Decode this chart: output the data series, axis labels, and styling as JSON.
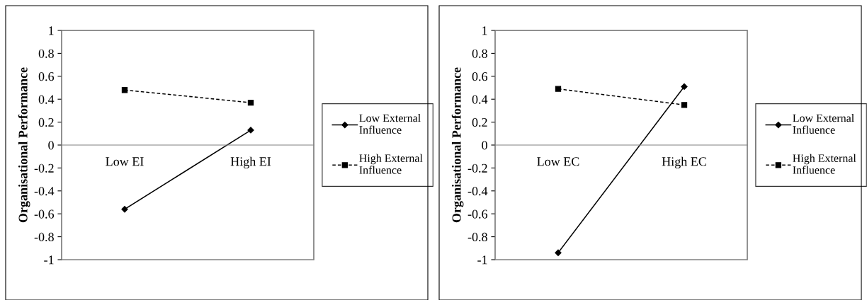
{
  "chart_data": [
    {
      "type": "line",
      "categories": [
        "Low EI",
        "High EI"
      ],
      "ylabel": "Organisational Performance",
      "ylim": [
        -1,
        1
      ],
      "yticks": [
        -1,
        -0.8,
        -0.6,
        -0.4,
        -0.2,
        0,
        0.2,
        0.4,
        0.6,
        0.8,
        1
      ],
      "grid": false,
      "legend": "right",
      "series": [
        {
          "name": "Low External Influence",
          "color": "#000000",
          "values": [
            -0.56,
            0.13
          ],
          "marker": "diamond",
          "line_style": "solid"
        },
        {
          "name": "High External Influence",
          "color": "#000000",
          "values": [
            0.48,
            0.37
          ],
          "marker": "square",
          "line_style": "dashed"
        }
      ]
    },
    {
      "type": "line",
      "categories": [
        "Low EC",
        "High EC"
      ],
      "ylabel": "Organisational Performance",
      "ylim": [
        -1,
        1
      ],
      "yticks": [
        -1,
        -0.8,
        -0.6,
        -0.4,
        -0.2,
        0,
        0.2,
        0.4,
        0.6,
        0.8,
        1
      ],
      "grid": false,
      "legend": "right",
      "series": [
        {
          "name": "Low External Influence",
          "color": "#000000",
          "values": [
            -0.94,
            0.51
          ],
          "marker": "diamond",
          "line_style": "solid"
        },
        {
          "name": "High External Influence",
          "color": "#000000",
          "values": [
            0.49,
            0.35
          ],
          "marker": "square",
          "line_style": "dashed"
        }
      ]
    }
  ]
}
